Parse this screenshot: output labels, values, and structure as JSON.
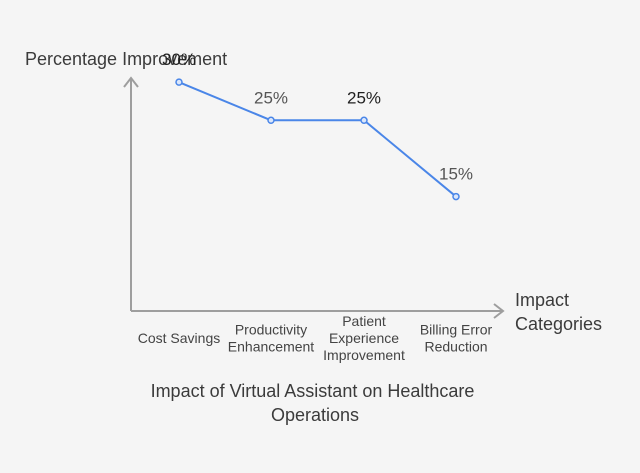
{
  "chart_data": {
    "type": "line",
    "categories": [
      [
        "Cost Savings"
      ],
      [
        "Productivity",
        "Enhancement"
      ],
      [
        "Patient",
        "Experience",
        "Improvement"
      ],
      [
        "Billing Error",
        "Reduction"
      ]
    ],
    "series": [
      {
        "values": [
          30,
          25,
          25,
          15
        ]
      }
    ],
    "data_labels": [
      "30%",
      "25%",
      "25%",
      "15%"
    ],
    "title_lines": [
      "Impact of Virtual Assistant on Healthcare",
      "Operations"
    ],
    "ylabel": "Percentage Improvement",
    "xlabel_lines": [
      "Impact",
      "Categories"
    ],
    "ylim": [
      0,
      35
    ],
    "grid": false,
    "legend": "none",
    "colors": {
      "line": "#4a86e8",
      "axis": "#9e9e9e",
      "label_dark": "#1f1f1f",
      "label_muted": "#555555",
      "background": "#f5f5f5"
    }
  }
}
